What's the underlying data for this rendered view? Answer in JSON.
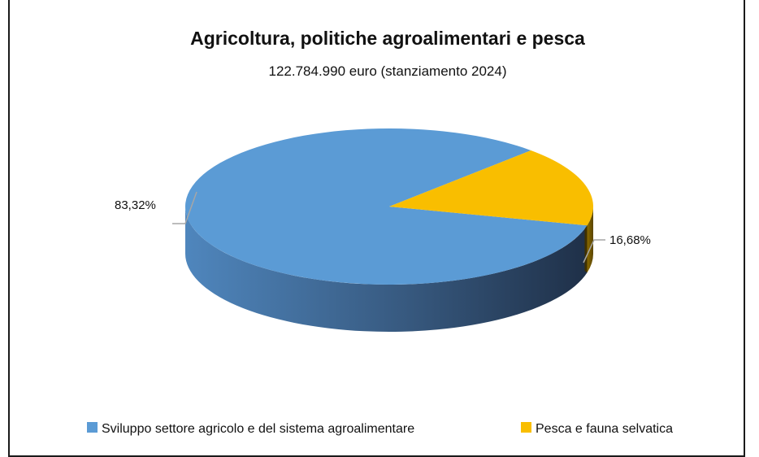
{
  "chart_data": {
    "type": "pie",
    "three_d": true,
    "title": "Agricoltura, politiche agroalimentari e pesca",
    "subtitle": "122.784.990 euro (stanziamento 2024)",
    "categories": [
      "Sviluppo settore agricolo e del sistema agroalimentare",
      "Pesca e fauna selvatica"
    ],
    "values": [
      83.32,
      16.68
    ],
    "data_labels": [
      "83,32%",
      "16,68%"
    ],
    "colors": [
      "#5b9bd5",
      "#f9be00"
    ],
    "legend_position": "bottom"
  }
}
